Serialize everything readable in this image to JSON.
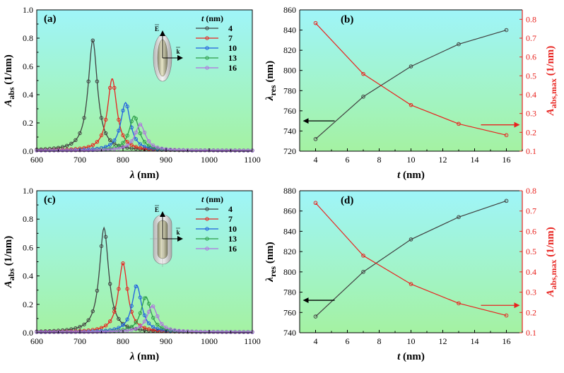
{
  "colors": {
    "t4": "#404040",
    "t7": "#e8231f",
    "t10": "#1f5fe0",
    "t13": "#2e9e4a",
    "t16": "#b070e0",
    "red_axis": "#e8231f",
    "bg_top": "#9ff5f9",
    "bg_bottom": "#a4f2a2"
  },
  "chart_data": [
    {
      "id": "a",
      "type": "line",
      "panel_label": "(a)",
      "xlabel_italic": "λ",
      "xlabel_unit": " (nm)",
      "ylabel_main": "A",
      "ylabel_sub": "abs",
      "ylabel_unit": " (1/nm)",
      "xlim": [
        600,
        1100
      ],
      "ylim": [
        0,
        1.0
      ],
      "xticks": [
        "600",
        "700",
        "800",
        "900",
        "1000",
        "1100"
      ],
      "yticks": [
        "0.0",
        "0.2",
        "0.4",
        "0.6",
        "0.8",
        "1.0"
      ],
      "legend_title_italic": "t",
      "legend_title_unit": " (nm)",
      "inset_labels": {
        "e": "E",
        "k": "k"
      },
      "series": [
        {
          "name": "4",
          "color_key": "t4",
          "peak": 730,
          "amp": 0.78,
          "width": 26
        },
        {
          "name": "7",
          "color_key": "t7",
          "peak": 775,
          "amp": 0.51,
          "width": 26
        },
        {
          "name": "10",
          "color_key": "t10",
          "peak": 806,
          "amp": 0.34,
          "width": 27
        },
        {
          "name": "13",
          "color_key": "t13",
          "peak": 826,
          "amp": 0.245,
          "width": 28
        },
        {
          "name": "16",
          "color_key": "t16",
          "peak": 840,
          "amp": 0.185,
          "width": 30
        }
      ]
    },
    {
      "id": "b",
      "type": "line",
      "panel_label": "(b)",
      "xlabel_italic": "t",
      "xlabel_unit": " (nm)",
      "ylabel_left_main": "λ",
      "ylabel_left_sub": "res",
      "ylabel_left_unit": " (nm)",
      "ylabel_right_main": "A",
      "ylabel_right_sub": "abs,max",
      "ylabel_right_unit": " (1/nm)",
      "xlim": [
        3,
        17
      ],
      "ylim_left": [
        720,
        860
      ],
      "ylim_right": [
        0.1,
        0.85
      ],
      "xticks": [
        "4",
        "6",
        "8",
        "10",
        "12",
        "14",
        "16"
      ],
      "yticks_left": [
        "720",
        "740",
        "760",
        "780",
        "800",
        "820",
        "840",
        "860"
      ],
      "yticks_right": [
        "0.1",
        "0.2",
        "0.3",
        "0.4",
        "0.5",
        "0.6",
        "0.7",
        "0.8"
      ],
      "x": [
        4,
        7,
        10,
        13,
        16
      ],
      "lambda_res": [
        732,
        774,
        804,
        826,
        840
      ],
      "a_abs_max": [
        0.78,
        0.51,
        0.345,
        0.245,
        0.185
      ]
    },
    {
      "id": "c",
      "type": "line",
      "panel_label": "(c)",
      "xlabel_italic": "λ",
      "xlabel_unit": " (nm)",
      "ylabel_main": "A",
      "ylabel_sub": "abs",
      "ylabel_unit": " (1/nm)",
      "xlim": [
        600,
        1100
      ],
      "ylim": [
        0,
        1.0
      ],
      "xticks": [
        "600",
        "700",
        "800",
        "900",
        "1000",
        "1100"
      ],
      "yticks": [
        "0.0",
        "0.2",
        "0.4",
        "0.6",
        "0.8",
        "1.0"
      ],
      "legend_title_italic": "t",
      "legend_title_unit": " (nm)",
      "inset_labels": {
        "e": "E",
        "k": "k"
      },
      "series": [
        {
          "name": "4",
          "color_key": "t4",
          "peak": 756,
          "amp": 0.735,
          "width": 26
        },
        {
          "name": "7",
          "color_key": "t7",
          "peak": 800,
          "amp": 0.485,
          "width": 26
        },
        {
          "name": "10",
          "color_key": "t10",
          "peak": 832,
          "amp": 0.33,
          "width": 27
        },
        {
          "name": "13",
          "color_key": "t13",
          "peak": 853,
          "amp": 0.25,
          "width": 28
        },
        {
          "name": "16",
          "color_key": "t16",
          "peak": 868,
          "amp": 0.185,
          "width": 30
        }
      ]
    },
    {
      "id": "d",
      "type": "line",
      "panel_label": "(d)",
      "xlabel_italic": "t",
      "xlabel_unit": " (nm)",
      "ylabel_left_main": "λ",
      "ylabel_left_sub": "res",
      "ylabel_left_unit": " (nm)",
      "ylabel_right_main": "A",
      "ylabel_right_sub": "abs,max",
      "ylabel_right_unit": " (1/nm)",
      "xlim": [
        3,
        17
      ],
      "ylim_left": [
        740,
        880
      ],
      "ylim_right": [
        0.1,
        0.8
      ],
      "xticks": [
        "4",
        "6",
        "8",
        "10",
        "12",
        "14",
        "16"
      ],
      "yticks_left": [
        "740",
        "760",
        "780",
        "800",
        "820",
        "840",
        "860",
        "880"
      ],
      "yticks_right": [
        "0.1",
        "0.2",
        "0.3",
        "0.4",
        "0.5",
        "0.6",
        "0.7",
        "0.8"
      ],
      "x": [
        4,
        7,
        10,
        13,
        16
      ],
      "lambda_res": [
        756,
        800,
        832,
        854,
        870
      ],
      "a_abs_max": [
        0.74,
        0.48,
        0.34,
        0.245,
        0.185
      ]
    }
  ]
}
